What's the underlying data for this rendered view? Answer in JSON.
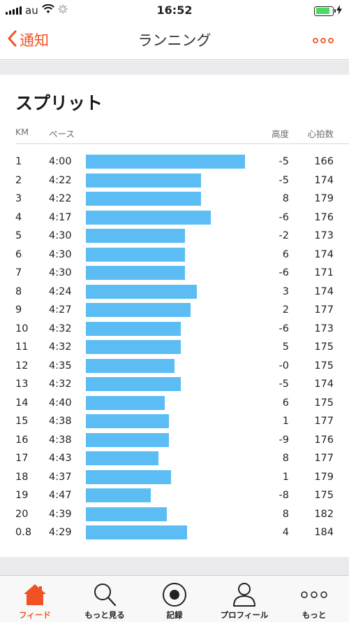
{
  "status": {
    "carrier": "au",
    "time": "16:52",
    "battery_level": 0.85
  },
  "nav": {
    "back_label": "通知",
    "title": "ランニング"
  },
  "splits": {
    "title": "スプリット",
    "headers": {
      "km": "KM",
      "pace": "ペース",
      "elevation": "高度",
      "heart_rate": "心拍数"
    },
    "rows": [
      {
        "km": "1",
        "pace": "4:00",
        "pace_sec": 240,
        "elevation": "-5",
        "heart_rate": "166"
      },
      {
        "km": "2",
        "pace": "4:22",
        "pace_sec": 262,
        "elevation": "-5",
        "heart_rate": "174"
      },
      {
        "km": "3",
        "pace": "4:22",
        "pace_sec": 262,
        "elevation": "8",
        "heart_rate": "179"
      },
      {
        "km": "4",
        "pace": "4:17",
        "pace_sec": 257,
        "elevation": "-6",
        "heart_rate": "176"
      },
      {
        "km": "5",
        "pace": "4:30",
        "pace_sec": 270,
        "elevation": "-2",
        "heart_rate": "173"
      },
      {
        "km": "6",
        "pace": "4:30",
        "pace_sec": 270,
        "elevation": "6",
        "heart_rate": "174"
      },
      {
        "km": "7",
        "pace": "4:30",
        "pace_sec": 270,
        "elevation": "-6",
        "heart_rate": "171"
      },
      {
        "km": "8",
        "pace": "4:24",
        "pace_sec": 264,
        "elevation": "3",
        "heart_rate": "174"
      },
      {
        "km": "9",
        "pace": "4:27",
        "pace_sec": 267,
        "elevation": "2",
        "heart_rate": "177"
      },
      {
        "km": "10",
        "pace": "4:32",
        "pace_sec": 272,
        "elevation": "-6",
        "heart_rate": "173"
      },
      {
        "km": "11",
        "pace": "4:32",
        "pace_sec": 272,
        "elevation": "5",
        "heart_rate": "175"
      },
      {
        "km": "12",
        "pace": "4:35",
        "pace_sec": 275,
        "elevation": "-0",
        "heart_rate": "175"
      },
      {
        "km": "13",
        "pace": "4:32",
        "pace_sec": 272,
        "elevation": "-5",
        "heart_rate": "174"
      },
      {
        "km": "14",
        "pace": "4:40",
        "pace_sec": 280,
        "elevation": "6",
        "heart_rate": "175"
      },
      {
        "km": "15",
        "pace": "4:38",
        "pace_sec": 278,
        "elevation": "1",
        "heart_rate": "177"
      },
      {
        "km": "16",
        "pace": "4:38",
        "pace_sec": 278,
        "elevation": "-9",
        "heart_rate": "176"
      },
      {
        "km": "17",
        "pace": "4:43",
        "pace_sec": 283,
        "elevation": "8",
        "heart_rate": "177"
      },
      {
        "km": "18",
        "pace": "4:37",
        "pace_sec": 277,
        "elevation": "1",
        "heart_rate": "179"
      },
      {
        "km": "19",
        "pace": "4:47",
        "pace_sec": 287,
        "elevation": "-8",
        "heart_rate": "175"
      },
      {
        "km": "20",
        "pace": "4:39",
        "pace_sec": 279,
        "elevation": "8",
        "heart_rate": "182"
      },
      {
        "km": "0.8",
        "pace": "4:29",
        "pace_sec": 269,
        "elevation": "4",
        "heart_rate": "184"
      }
    ]
  },
  "tabs": [
    {
      "label": "フィード",
      "icon": "home-icon",
      "active": true
    },
    {
      "label": "もっと見る",
      "icon": "search-icon",
      "active": false
    },
    {
      "label": "記録",
      "icon": "record-icon",
      "active": false
    },
    {
      "label": "プロフィール",
      "icon": "profile-icon",
      "active": false
    },
    {
      "label": "もっと",
      "icon": "more-icon",
      "active": false
    }
  ],
  "colors": {
    "accent": "#f05223",
    "bar": "#5bbdf3",
    "battery": "#4cd964"
  }
}
